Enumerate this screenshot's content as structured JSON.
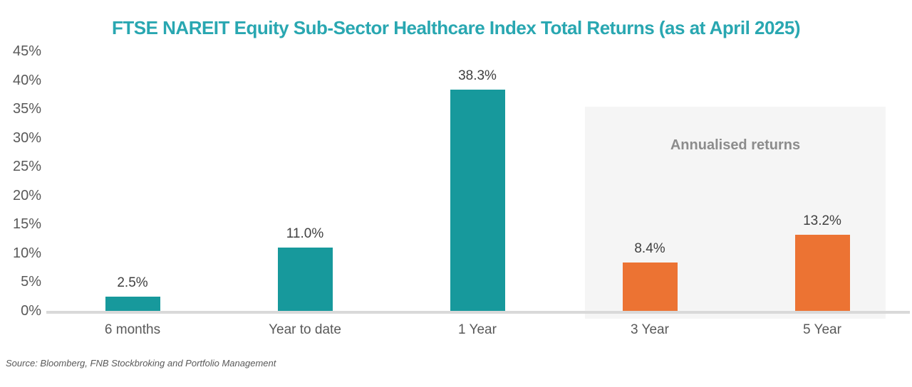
{
  "page": {
    "title": "FTSE NAREIT Equity Sub-Sector Healthcare Index Total Returns (as at April 2025)",
    "source": "Source: Bloomberg, FNB Stockbroking and Portfolio Management"
  },
  "chart_data": {
    "type": "bar",
    "title": "FTSE NAREIT Equity Sub-Sector Healthcare Index Total Returns (as at April 2025)",
    "categories": [
      "6 months",
      "Year to date",
      "1 Year",
      "3 Year",
      "5 Year"
    ],
    "values": [
      2.5,
      11.0,
      38.3,
      8.4,
      13.2
    ],
    "data_labels": [
      "2.5%",
      "11.0%",
      "38.3%",
      "8.4%",
      "13.2%"
    ],
    "bar_colors": [
      "#17999C",
      "#17999C",
      "#17999C",
      "#EC7333",
      "#EC7333"
    ],
    "xlabel": "",
    "ylabel": "",
    "ylim": [
      0,
      45
    ],
    "yticks": [
      0,
      5,
      10,
      15,
      20,
      25,
      30,
      35,
      40,
      45
    ],
    "ytick_suffix": "%",
    "grid": false,
    "legend": "none",
    "annotation": {
      "label": "Annualised returns",
      "covers": [
        "3 Year",
        "5 Year"
      ],
      "background": "#F5F5F5",
      "text_color": "#8C8C8C"
    }
  },
  "colors": {
    "title_text": "#29A7B1",
    "axis_line": "#D9D9D9",
    "tick_text": "#595959",
    "data_label_text": "#404040"
  }
}
